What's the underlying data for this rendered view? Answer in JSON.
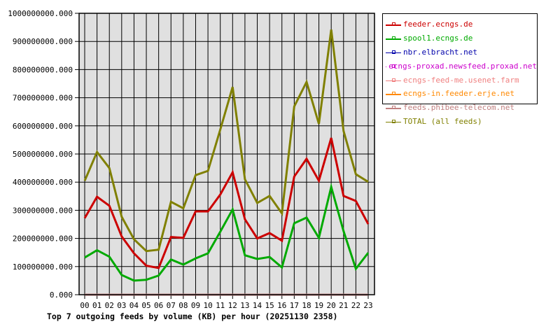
{
  "chart_data": {
    "type": "line",
    "title": "Top 7 outgoing feeds by volume (KB) per hour (20251130 2358)",
    "xlabel": "",
    "ylabel": "",
    "ylim": [
      0,
      1000000000
    ],
    "grid": true,
    "legend_position": "right",
    "y_ticks": [
      "0.000",
      "100000000.000",
      "200000000.000",
      "300000000.000",
      "400000000.000",
      "500000000.000",
      "600000000.000",
      "700000000.000",
      "800000000.000",
      "900000000.000",
      "1000000000.000"
    ],
    "categories": [
      "00",
      "01",
      "02",
      "03",
      "04",
      "05",
      "06",
      "07",
      "08",
      "09",
      "10",
      "11",
      "12",
      "13",
      "14",
      "15",
      "16",
      "17",
      "18",
      "19",
      "20",
      "21",
      "22",
      "23"
    ],
    "series": [
      {
        "name": "feeder.ecngs.de",
        "color": "#cc0000",
        "values": [
          272000000,
          348000000,
          316000000,
          207000000,
          147000000,
          103000000,
          95000000,
          205000000,
          202000000,
          296000000,
          296000000,
          356000000,
          435000000,
          268000000,
          200000000,
          219000000,
          192000000,
          420000000,
          483000000,
          405000000,
          557000000,
          351000000,
          333000000,
          251000000
        ]
      },
      {
        "name": "spool1.ecngs.de",
        "color": "#00aa00",
        "values": [
          132000000,
          158000000,
          135000000,
          70000000,
          50000000,
          53000000,
          68000000,
          125000000,
          107000000,
          129000000,
          147000000,
          224000000,
          303000000,
          140000000,
          127000000,
          134000000,
          97000000,
          254000000,
          274000000,
          202000000,
          383000000,
          226000000,
          92000000,
          149000000
        ]
      },
      {
        "name": "nbr.elbracht.net",
        "color": "#0000aa",
        "values": [
          0,
          0,
          0,
          0,
          0,
          0,
          0,
          0,
          0,
          0,
          0,
          0,
          0,
          0,
          0,
          0,
          0,
          0,
          0,
          0,
          0,
          0,
          0,
          0
        ]
      },
      {
        "name": "ecngs-proxad.newsfeed.proxad.net",
        "color": "#cc00cc",
        "values": [
          0,
          0,
          0,
          0,
          0,
          0,
          0,
          0,
          0,
          0,
          0,
          0,
          0,
          0,
          0,
          0,
          0,
          0,
          0,
          0,
          0,
          0,
          0,
          0
        ]
      },
      {
        "name": "ecngs-feed-me.usenet.farm",
        "color": "#f08080",
        "values": [
          0,
          0,
          0,
          0,
          0,
          0,
          0,
          0,
          0,
          0,
          0,
          0,
          0,
          0,
          0,
          0,
          0,
          0,
          0,
          0,
          0,
          0,
          0,
          0
        ]
      },
      {
        "name": "ecngs-in.feeder.erje.net",
        "color": "#ff8800",
        "values": [
          0,
          0,
          0,
          0,
          0,
          0,
          0,
          0,
          0,
          0,
          0,
          0,
          0,
          0,
          0,
          0,
          0,
          0,
          0,
          0,
          0,
          0,
          0,
          0
        ]
      },
      {
        "name": "feeds.phibee-telecom.net",
        "color": "#c08080",
        "values": [
          0,
          0,
          0,
          0,
          0,
          0,
          0,
          0,
          0,
          0,
          0,
          0,
          0,
          0,
          0,
          0,
          0,
          0,
          0,
          0,
          0,
          0,
          0,
          0
        ]
      },
      {
        "name": "TOTAL (all feeds)",
        "color": "#808000",
        "values": [
          405000000,
          507000000,
          450000000,
          277000000,
          197000000,
          155000000,
          160000000,
          330000000,
          307000000,
          425000000,
          440000000,
          587000000,
          738000000,
          410000000,
          326000000,
          351000000,
          289000000,
          669000000,
          756000000,
          607000000,
          942000000,
          582000000,
          428000000,
          401000000
        ]
      }
    ]
  },
  "legend": {
    "items": [
      {
        "label": "feeder.ecngs.de",
        "color": "#cc0000"
      },
      {
        "label": "spool1.ecngs.de",
        "color": "#00aa00"
      },
      {
        "label": "nbr.elbracht.net",
        "color": "#0000aa"
      },
      {
        "label": "ecngs-proxad.newsfeed.proxad.net",
        "color": "#cc00cc"
      },
      {
        "label": "ecngs-feed-me.usenet.farm",
        "color": "#f08080"
      },
      {
        "label": "ecngs-in.feeder.erje.net",
        "color": "#ff8800"
      },
      {
        "label": "feeds.phibee-telecom.net",
        "color": "#c08080"
      },
      {
        "label": "TOTAL (all feeds)",
        "color": "#808000"
      }
    ]
  },
  "colors": {
    "plot_background": "#e0e0e0",
    "grid": "#000000"
  }
}
